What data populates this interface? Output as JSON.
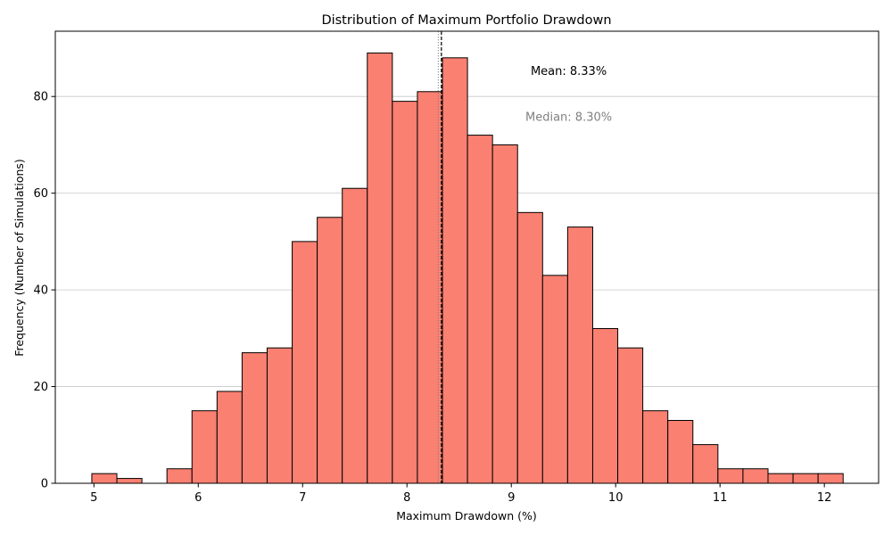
{
  "chart_data": {
    "type": "bar",
    "title": "Distribution of Maximum Portfolio Drawdown",
    "xlabel": "Maximum Drawdown (%)",
    "ylabel": "Frequency (Number of Simulations)",
    "xlim": [
      4.63,
      12.52
    ],
    "ylim": [
      0,
      93.5
    ],
    "xticks": [
      5,
      6,
      7,
      8,
      9,
      10,
      11,
      12
    ],
    "yticks": [
      0,
      20,
      40,
      60,
      80
    ],
    "grid": "y",
    "bar_color": "#FA8072",
    "edge_color": "#000000",
    "bins": [
      {
        "x0": 4.98,
        "x1": 5.22,
        "value": 2
      },
      {
        "x0": 5.22,
        "x1": 5.46,
        "value": 1
      },
      {
        "x0": 5.46,
        "x1": 5.7,
        "value": 0
      },
      {
        "x0": 5.7,
        "x1": 5.94,
        "value": 3
      },
      {
        "x0": 5.94,
        "x1": 6.18,
        "value": 15
      },
      {
        "x0": 6.18,
        "x1": 6.42,
        "value": 19
      },
      {
        "x0": 6.42,
        "x1": 6.66,
        "value": 27
      },
      {
        "x0": 6.66,
        "x1": 6.9,
        "value": 28
      },
      {
        "x0": 6.9,
        "x1": 7.14,
        "value": 50
      },
      {
        "x0": 7.14,
        "x1": 7.38,
        "value": 55
      },
      {
        "x0": 7.38,
        "x1": 7.62,
        "value": 61
      },
      {
        "x0": 7.62,
        "x1": 7.86,
        "value": 89
      },
      {
        "x0": 7.86,
        "x1": 8.1,
        "value": 79
      },
      {
        "x0": 8.1,
        "x1": 8.34,
        "value": 81
      },
      {
        "x0": 8.34,
        "x1": 8.58,
        "value": 88
      },
      {
        "x0": 8.58,
        "x1": 8.82,
        "value": 72
      },
      {
        "x0": 8.82,
        "x1": 9.06,
        "value": 70
      },
      {
        "x0": 9.06,
        "x1": 9.3,
        "value": 56
      },
      {
        "x0": 9.3,
        "x1": 9.54,
        "value": 43
      },
      {
        "x0": 9.54,
        "x1": 9.78,
        "value": 53
      },
      {
        "x0": 9.78,
        "x1": 10.02,
        "value": 32
      },
      {
        "x0": 10.02,
        "x1": 10.26,
        "value": 28
      },
      {
        "x0": 10.26,
        "x1": 10.5,
        "value": 15
      },
      {
        "x0": 10.5,
        "x1": 10.74,
        "value": 13
      },
      {
        "x0": 10.74,
        "x1": 10.98,
        "value": 8
      },
      {
        "x0": 10.98,
        "x1": 11.22,
        "value": 3
      },
      {
        "x0": 11.22,
        "x1": 11.46,
        "value": 3
      },
      {
        "x0": 11.46,
        "x1": 11.7,
        "value": 2
      },
      {
        "x0": 11.7,
        "x1": 11.94,
        "value": 2
      },
      {
        "x0": 11.94,
        "x1": 12.18,
        "value": 2
      }
    ],
    "reference_lines": [
      {
        "name": "mean",
        "value": 8.33,
        "style": "dashed",
        "color": "#000000"
      },
      {
        "name": "median",
        "value": 8.3,
        "style": "dotted",
        "color": "#808080"
      }
    ],
    "annotations": [
      {
        "name": "mean",
        "text": "Mean: 8.33%",
        "x": 9.55,
        "y": 84.5,
        "color": "#000000"
      },
      {
        "name": "median",
        "text": "Median: 8.30%",
        "x": 9.55,
        "y": 75,
        "color": "#808080"
      }
    ]
  }
}
